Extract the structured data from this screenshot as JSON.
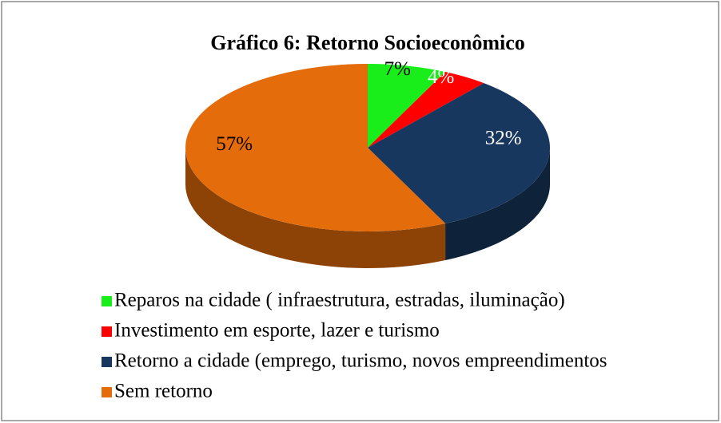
{
  "chart_data": {
    "type": "pie",
    "title": "Gráfico 6: Retorno Socioeconômico",
    "categories": [
      "Reparos na cidade ( infraestrutura, estradas, iluminação)",
      "Investimento em esporte, lazer e turismo",
      "Retorno a cidade (emprego, turismo, novos empreendimentos",
      "Sem retorno"
    ],
    "values": [
      7,
      4,
      32,
      57
    ],
    "value_labels": [
      "7%",
      "4%",
      "32%",
      "57%"
    ],
    "colors": [
      "#1aee1a",
      "#ff0000",
      "#17375e",
      "#e46c0a"
    ],
    "legend": "bottom"
  }
}
